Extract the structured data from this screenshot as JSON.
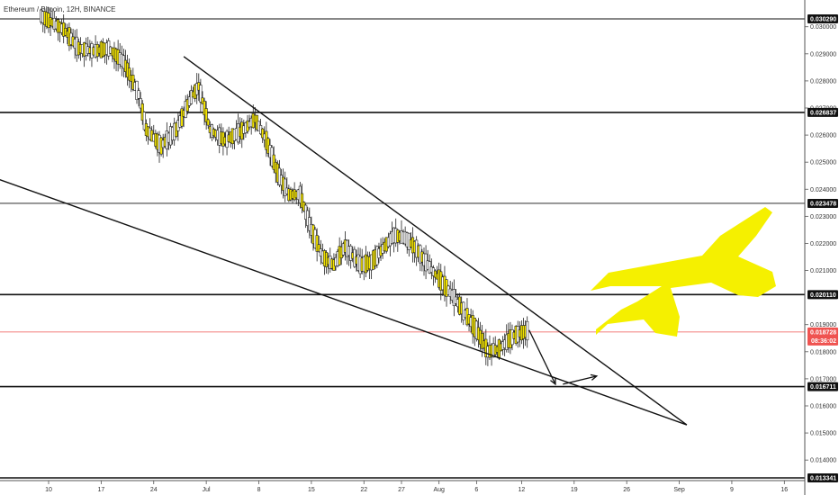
{
  "chart_data": {
    "type": "candlestick",
    "title": "Ethereum / Bitcoin, 12H, BINANCE",
    "ylim": [
      0.0133,
      0.0316
    ],
    "y_ticks": [
      "0.030000",
      "0.029000",
      "0.028000",
      "0.027000",
      "0.026000",
      "0.025000",
      "0.024000",
      "0.023000",
      "0.022000",
      "0.021000",
      "0.019000",
      "0.018000",
      "0.017000",
      "0.016000",
      "0.015000",
      "0.014000"
    ],
    "x_ticks": [
      {
        "label": "10",
        "x": 0
      },
      {
        "label": "17",
        "x": 14
      },
      {
        "label": "24",
        "x": 28
      },
      {
        "label": "Jul",
        "x": 42
      },
      {
        "label": "8",
        "x": 56
      },
      {
        "label": "15",
        "x": 70
      },
      {
        "label": "22",
        "x": 84
      },
      {
        "label": "27",
        "x": 94
      },
      {
        "label": "Aug",
        "x": 104
      },
      {
        "label": "6",
        "x": 114
      },
      {
        "label": "12",
        "x": 126
      },
      {
        "label": "19",
        "x": 140
      },
      {
        "label": "26",
        "x": 154
      },
      {
        "label": "Sep",
        "x": 168
      },
      {
        "label": "9",
        "x": 182
      },
      {
        "label": "16",
        "x": 196
      }
    ],
    "horizontal_levels": [
      {
        "value": 0.03029,
        "label": "0.030290"
      },
      {
        "value": 0.026837,
        "label": "0.026837"
      },
      {
        "value": 0.023478,
        "label": "0.023478"
      },
      {
        "value": 0.02011,
        "label": "0.020110"
      },
      {
        "value": 0.016711,
        "label": "0.016711"
      },
      {
        "value": 0.013341,
        "label": "0.013341"
      }
    ],
    "last_price": {
      "value": 0.018728,
      "label": "0.018728",
      "countdown": "08:36:02",
      "color": "#ef5350"
    },
    "trendlines": [
      {
        "from": [
          36,
          0.0289
        ],
        "to": [
          170,
          0.0153
        ]
      },
      {
        "from": [
          -20,
          0.0247
        ],
        "to": [
          170,
          0.0153
        ]
      }
    ],
    "projection_arrows": [
      {
        "from": [
          128,
          0.0188
        ],
        "to": [
          135,
          0.0168
        ]
      },
      {
        "from": [
          137,
          0.0168
        ],
        "to": [
          146,
          0.0171
        ]
      }
    ],
    "candle_colors": {
      "up": "#ffffff",
      "down": "#f5e500",
      "outline": "#222222"
    },
    "accent_color": "#f5f000"
  }
}
